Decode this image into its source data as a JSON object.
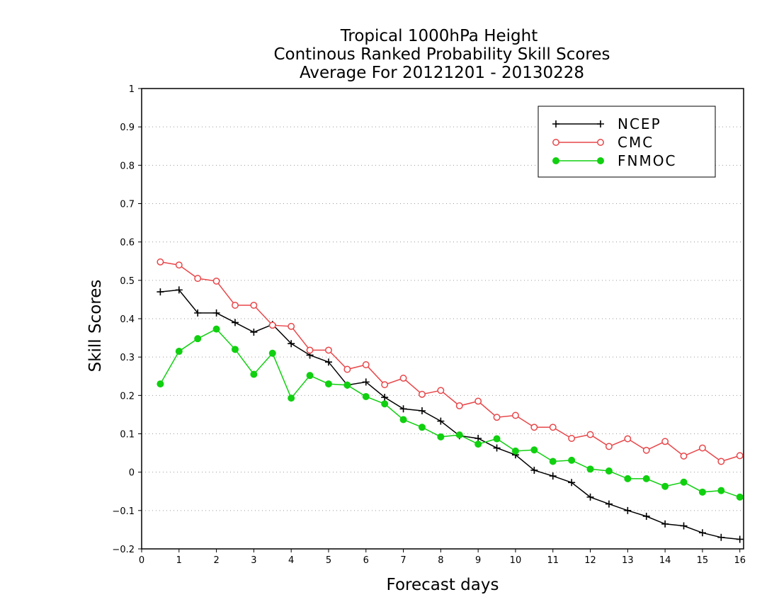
{
  "chart_data": {
    "type": "line",
    "title_lines": [
      "Tropical 1000hPa Height",
      "Continous Ranked Probability Skill Scores",
      "Average For 20121201 - 20130228"
    ],
    "xlabel": "Forecast days",
    "ylabel": "Skill Scores",
    "xlim": [
      0,
      16.1
    ],
    "ylim": [
      -0.2,
      1
    ],
    "xticks": [
      0,
      1,
      2,
      3,
      4,
      5,
      6,
      7,
      8,
      9,
      10,
      11,
      12,
      13,
      14,
      15,
      16
    ],
    "yticks": [
      -0.2,
      -0.1,
      0,
      0.1,
      0.2,
      0.3,
      0.4,
      0.5,
      0.6,
      0.7,
      0.8,
      0.9,
      1
    ],
    "ytick_labels": [
      "−0.2",
      "−0.1",
      "0",
      "0.1",
      "0.2",
      "0.3",
      "0.4",
      "0.5",
      "0.6",
      "0.7",
      "0.8",
      "0.9",
      "1"
    ],
    "grid": "horizontal dotted",
    "legend_position": "top-right",
    "x": [
      0.5,
      1,
      1.5,
      2,
      2.5,
      3,
      3.5,
      4,
      4.5,
      5,
      5.5,
      6,
      6.5,
      7,
      7.5,
      8,
      8.5,
      9,
      9.5,
      10,
      10.5,
      11,
      11.5,
      12,
      12.5,
      13,
      13.5,
      14,
      14.5,
      15,
      15.5,
      16
    ],
    "series": [
      {
        "name": "NCEP",
        "color": "#000000",
        "marker": "plus",
        "values": [
          0.47,
          0.475,
          0.415,
          0.415,
          0.39,
          0.365,
          0.385,
          0.335,
          0.305,
          0.287,
          0.227,
          0.235,
          0.195,
          0.165,
          0.16,
          0.133,
          0.095,
          0.088,
          0.063,
          0.045,
          0.005,
          -0.01,
          -0.027,
          -0.065,
          -0.083,
          -0.1,
          -0.115,
          -0.135,
          -0.14,
          -0.158,
          -0.17,
          -0.175
        ]
      },
      {
        "name": "CMC",
        "color": "#e8474a",
        "marker": "open-circle",
        "values": [
          0.548,
          0.54,
          0.505,
          0.498,
          0.435,
          0.435,
          0.383,
          0.38,
          0.318,
          0.318,
          0.268,
          0.28,
          0.228,
          0.245,
          0.203,
          0.213,
          0.173,
          0.185,
          0.143,
          0.148,
          0.117,
          0.117,
          0.088,
          0.098,
          0.067,
          0.087,
          0.057,
          0.08,
          0.042,
          0.063,
          0.028,
          0.043
        ]
      },
      {
        "name": "FNMOC",
        "color": "#10d010",
        "marker": "filled-circle",
        "values": [
          0.23,
          0.315,
          0.348,
          0.373,
          0.32,
          0.255,
          0.31,
          0.193,
          0.252,
          0.23,
          0.227,
          0.197,
          0.178,
          0.137,
          0.117,
          0.092,
          0.097,
          0.073,
          0.087,
          0.055,
          0.058,
          0.028,
          0.031,
          0.008,
          0.003,
          -0.017,
          -0.017,
          -0.037,
          -0.026,
          -0.052,
          -0.048,
          -0.065
        ]
      }
    ]
  }
}
